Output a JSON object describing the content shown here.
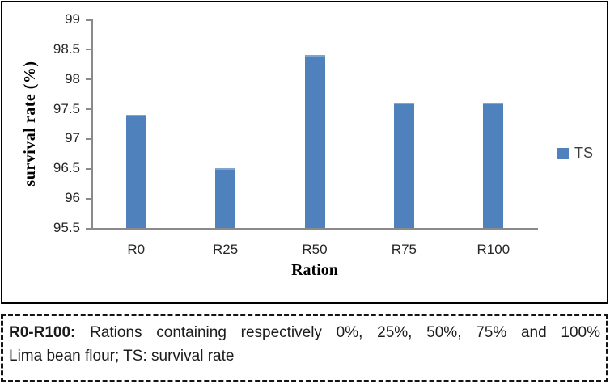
{
  "figure": {
    "caption": {
      "line1_bold": "R0-R100:",
      "line1_rest": "Rations containing respectively 0%, 25%, 50%, 75% and 100%",
      "line2": "Lima bean flour; TS: survival rate"
    }
  },
  "chart_data": {
    "type": "bar",
    "title": "",
    "categories": [
      "R0",
      "R25",
      "R50",
      "R75",
      "R100"
    ],
    "series": [
      {
        "name": "TS",
        "values": [
          97.4,
          96.5,
          98.4,
          97.6,
          97.6
        ]
      }
    ],
    "xlabel": "Ration",
    "ylabel": "survival rate (%)",
    "ylim": [
      95.5,
      99
    ],
    "ytick_step": 0.5,
    "ytick_labels": [
      "99",
      "98.5",
      "98",
      "97.5",
      "97",
      "96.5",
      "96",
      "95.5"
    ],
    "legend": {
      "position": "right",
      "entries": [
        "TS"
      ]
    },
    "grid": false,
    "colors": {
      "bar": "#4F81BD",
      "bar_top_edge": "#7FA4CF",
      "axis": "#8A8A8A",
      "tick_text": "#262626",
      "title_text": "#000000"
    }
  }
}
